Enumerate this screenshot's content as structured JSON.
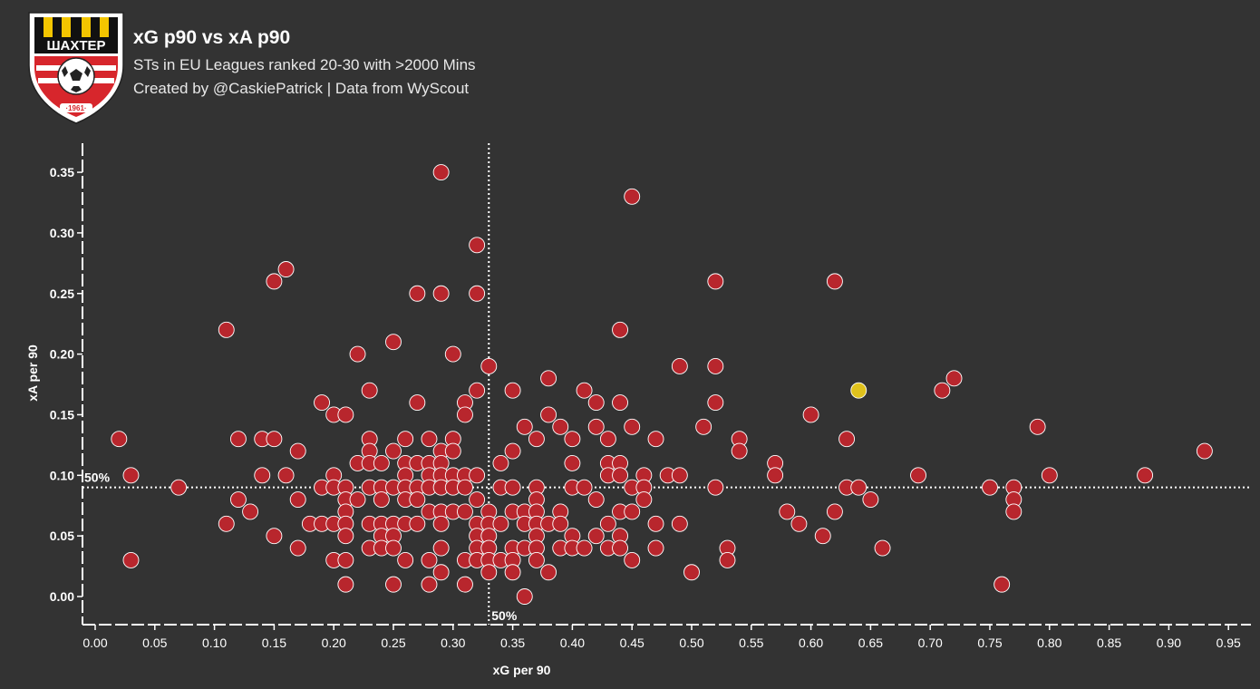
{
  "header": {
    "title": "xG p90 vs xA p90",
    "subtitle": "STs in EU Leagues ranked 20-30 with >2000 Mins",
    "credit": "Created by @CaskiePatrick | Data from WyScout",
    "logo_text": "ШАХТЕР",
    "logo_year": "·1961·"
  },
  "colors": {
    "background": "#333333",
    "point": "#b8262d",
    "highlight": "#e0c21c",
    "text": "#ffffff"
  },
  "chart_data": {
    "type": "scatter",
    "title": "xG p90 vs xA p90",
    "xlabel": "xG per 90",
    "ylabel": "xA per 90",
    "xlim": [
      -0.01,
      0.98
    ],
    "ylim": [
      -0.02,
      0.375
    ],
    "xticks": [
      0.0,
      0.05,
      0.1,
      0.15,
      0.2,
      0.25,
      0.3,
      0.35,
      0.4,
      0.45,
      0.5,
      0.55,
      0.6,
      0.65,
      0.7,
      0.75,
      0.8,
      0.85,
      0.9,
      0.95
    ],
    "xtick_labels": [
      "0.00",
      "0.05",
      "0.10",
      "0.15",
      "0.20",
      "0.25",
      "0.30",
      "0.35",
      "0.40",
      "0.45",
      "0.50",
      "0.55",
      "0.60",
      "0.65",
      "0.70",
      "0.75",
      "0.80",
      "0.85",
      "0.90",
      "0.95"
    ],
    "yticks": [
      0.0,
      0.05,
      0.1,
      0.15,
      0.2,
      0.25,
      0.3,
      0.35
    ],
    "ytick_labels": [
      "0.00",
      "0.05",
      "0.10",
      "0.15",
      "0.20",
      "0.25",
      "0.30",
      "0.35"
    ],
    "reference_lines": {
      "x": 0.33,
      "y": 0.09,
      "x_label": "50%",
      "y_label": "50%"
    },
    "grid": false,
    "highlight": {
      "x": 0.64,
      "y": 0.17
    },
    "points": [
      [
        0.02,
        0.13
      ],
      [
        0.03,
        0.1
      ],
      [
        0.03,
        0.03
      ],
      [
        0.07,
        0.09
      ],
      [
        0.11,
        0.22
      ],
      [
        0.11,
        0.06
      ],
      [
        0.12,
        0.13
      ],
      [
        0.12,
        0.08
      ],
      [
        0.13,
        0.07
      ],
      [
        0.14,
        0.13
      ],
      [
        0.14,
        0.1
      ],
      [
        0.15,
        0.26
      ],
      [
        0.15,
        0.13
      ],
      [
        0.15,
        0.05
      ],
      [
        0.16,
        0.27
      ],
      [
        0.16,
        0.1
      ],
      [
        0.17,
        0.12
      ],
      [
        0.17,
        0.08
      ],
      [
        0.17,
        0.04
      ],
      [
        0.18,
        0.06
      ],
      [
        0.19,
        0.16
      ],
      [
        0.19,
        0.09
      ],
      [
        0.19,
        0.06
      ],
      [
        0.2,
        0.15
      ],
      [
        0.2,
        0.1
      ],
      [
        0.2,
        0.09
      ],
      [
        0.2,
        0.06
      ],
      [
        0.2,
        0.03
      ],
      [
        0.21,
        0.15
      ],
      [
        0.21,
        0.09
      ],
      [
        0.21,
        0.08
      ],
      [
        0.21,
        0.07
      ],
      [
        0.21,
        0.06
      ],
      [
        0.21,
        0.05
      ],
      [
        0.21,
        0.03
      ],
      [
        0.21,
        0.01
      ],
      [
        0.22,
        0.2
      ],
      [
        0.22,
        0.11
      ],
      [
        0.22,
        0.08
      ],
      [
        0.23,
        0.17
      ],
      [
        0.23,
        0.13
      ],
      [
        0.23,
        0.12
      ],
      [
        0.23,
        0.11
      ],
      [
        0.23,
        0.09
      ],
      [
        0.23,
        0.06
      ],
      [
        0.23,
        0.04
      ],
      [
        0.24,
        0.11
      ],
      [
        0.24,
        0.09
      ],
      [
        0.24,
        0.08
      ],
      [
        0.24,
        0.06
      ],
      [
        0.24,
        0.05
      ],
      [
        0.24,
        0.04
      ],
      [
        0.25,
        0.21
      ],
      [
        0.25,
        0.12
      ],
      [
        0.25,
        0.09
      ],
      [
        0.25,
        0.06
      ],
      [
        0.25,
        0.05
      ],
      [
        0.25,
        0.04
      ],
      [
        0.25,
        0.01
      ],
      [
        0.26,
        0.13
      ],
      [
        0.26,
        0.11
      ],
      [
        0.26,
        0.1
      ],
      [
        0.26,
        0.09
      ],
      [
        0.26,
        0.08
      ],
      [
        0.26,
        0.06
      ],
      [
        0.26,
        0.03
      ],
      [
        0.27,
        0.25
      ],
      [
        0.27,
        0.16
      ],
      [
        0.27,
        0.11
      ],
      [
        0.27,
        0.09
      ],
      [
        0.27,
        0.08
      ],
      [
        0.27,
        0.06
      ],
      [
        0.28,
        0.13
      ],
      [
        0.28,
        0.11
      ],
      [
        0.28,
        0.1
      ],
      [
        0.28,
        0.09
      ],
      [
        0.28,
        0.07
      ],
      [
        0.28,
        0.03
      ],
      [
        0.28,
        0.01
      ],
      [
        0.29,
        0.35
      ],
      [
        0.29,
        0.25
      ],
      [
        0.29,
        0.12
      ],
      [
        0.29,
        0.11
      ],
      [
        0.29,
        0.1
      ],
      [
        0.29,
        0.09
      ],
      [
        0.29,
        0.07
      ],
      [
        0.29,
        0.06
      ],
      [
        0.29,
        0.04
      ],
      [
        0.29,
        0.02
      ],
      [
        0.3,
        0.2
      ],
      [
        0.3,
        0.13
      ],
      [
        0.3,
        0.12
      ],
      [
        0.3,
        0.1
      ],
      [
        0.3,
        0.09
      ],
      [
        0.3,
        0.07
      ],
      [
        0.31,
        0.16
      ],
      [
        0.31,
        0.15
      ],
      [
        0.31,
        0.1
      ],
      [
        0.31,
        0.09
      ],
      [
        0.31,
        0.07
      ],
      [
        0.31,
        0.03
      ],
      [
        0.31,
        0.01
      ],
      [
        0.32,
        0.29
      ],
      [
        0.32,
        0.25
      ],
      [
        0.32,
        0.17
      ],
      [
        0.32,
        0.1
      ],
      [
        0.32,
        0.08
      ],
      [
        0.32,
        0.06
      ],
      [
        0.32,
        0.05
      ],
      [
        0.32,
        0.04
      ],
      [
        0.32,
        0.03
      ],
      [
        0.33,
        0.19
      ],
      [
        0.33,
        0.07
      ],
      [
        0.33,
        0.06
      ],
      [
        0.33,
        0.05
      ],
      [
        0.33,
        0.04
      ],
      [
        0.33,
        0.03
      ],
      [
        0.33,
        0.02
      ],
      [
        0.34,
        0.11
      ],
      [
        0.34,
        0.09
      ],
      [
        0.34,
        0.06
      ],
      [
        0.34,
        0.03
      ],
      [
        0.35,
        0.17
      ],
      [
        0.35,
        0.12
      ],
      [
        0.35,
        0.09
      ],
      [
        0.35,
        0.07
      ],
      [
        0.35,
        0.04
      ],
      [
        0.35,
        0.03
      ],
      [
        0.35,
        0.02
      ],
      [
        0.36,
        0.14
      ],
      [
        0.36,
        0.07
      ],
      [
        0.36,
        0.06
      ],
      [
        0.36,
        0.04
      ],
      [
        0.36,
        0.0
      ],
      [
        0.37,
        0.13
      ],
      [
        0.37,
        0.09
      ],
      [
        0.37,
        0.08
      ],
      [
        0.37,
        0.07
      ],
      [
        0.37,
        0.06
      ],
      [
        0.37,
        0.05
      ],
      [
        0.37,
        0.04
      ],
      [
        0.37,
        0.03
      ],
      [
        0.38,
        0.18
      ],
      [
        0.38,
        0.15
      ],
      [
        0.38,
        0.06
      ],
      [
        0.38,
        0.02
      ],
      [
        0.39,
        0.14
      ],
      [
        0.39,
        0.07
      ],
      [
        0.39,
        0.06
      ],
      [
        0.39,
        0.04
      ],
      [
        0.4,
        0.13
      ],
      [
        0.4,
        0.11
      ],
      [
        0.4,
        0.09
      ],
      [
        0.4,
        0.05
      ],
      [
        0.4,
        0.04
      ],
      [
        0.41,
        0.17
      ],
      [
        0.41,
        0.09
      ],
      [
        0.41,
        0.04
      ],
      [
        0.42,
        0.16
      ],
      [
        0.42,
        0.14
      ],
      [
        0.42,
        0.08
      ],
      [
        0.42,
        0.05
      ],
      [
        0.43,
        0.13
      ],
      [
        0.43,
        0.11
      ],
      [
        0.43,
        0.1
      ],
      [
        0.43,
        0.06
      ],
      [
        0.43,
        0.04
      ],
      [
        0.44,
        0.22
      ],
      [
        0.44,
        0.16
      ],
      [
        0.44,
        0.11
      ],
      [
        0.44,
        0.1
      ],
      [
        0.44,
        0.07
      ],
      [
        0.44,
        0.05
      ],
      [
        0.44,
        0.04
      ],
      [
        0.45,
        0.33
      ],
      [
        0.45,
        0.14
      ],
      [
        0.45,
        0.09
      ],
      [
        0.45,
        0.07
      ],
      [
        0.45,
        0.03
      ],
      [
        0.46,
        0.1
      ],
      [
        0.46,
        0.09
      ],
      [
        0.46,
        0.08
      ],
      [
        0.47,
        0.13
      ],
      [
        0.47,
        0.06
      ],
      [
        0.47,
        0.04
      ],
      [
        0.48,
        0.1
      ],
      [
        0.49,
        0.19
      ],
      [
        0.49,
        0.1
      ],
      [
        0.49,
        0.06
      ],
      [
        0.5,
        0.02
      ],
      [
        0.51,
        0.14
      ],
      [
        0.52,
        0.26
      ],
      [
        0.52,
        0.19
      ],
      [
        0.52,
        0.16
      ],
      [
        0.52,
        0.09
      ],
      [
        0.53,
        0.04
      ],
      [
        0.53,
        0.03
      ],
      [
        0.54,
        0.13
      ],
      [
        0.54,
        0.12
      ],
      [
        0.57,
        0.11
      ],
      [
        0.57,
        0.1
      ],
      [
        0.58,
        0.07
      ],
      [
        0.59,
        0.06
      ],
      [
        0.6,
        0.15
      ],
      [
        0.61,
        0.05
      ],
      [
        0.62,
        0.26
      ],
      [
        0.62,
        0.07
      ],
      [
        0.63,
        0.13
      ],
      [
        0.63,
        0.09
      ],
      [
        0.64,
        0.09
      ],
      [
        0.65,
        0.08
      ],
      [
        0.66,
        0.04
      ],
      [
        0.69,
        0.1
      ],
      [
        0.71,
        0.17
      ],
      [
        0.72,
        0.18
      ],
      [
        0.75,
        0.09
      ],
      [
        0.76,
        0.01
      ],
      [
        0.77,
        0.09
      ],
      [
        0.77,
        0.08
      ],
      [
        0.77,
        0.07
      ],
      [
        0.79,
        0.14
      ],
      [
        0.8,
        0.1
      ],
      [
        0.88,
        0.1
      ],
      [
        0.93,
        0.12
      ]
    ]
  }
}
